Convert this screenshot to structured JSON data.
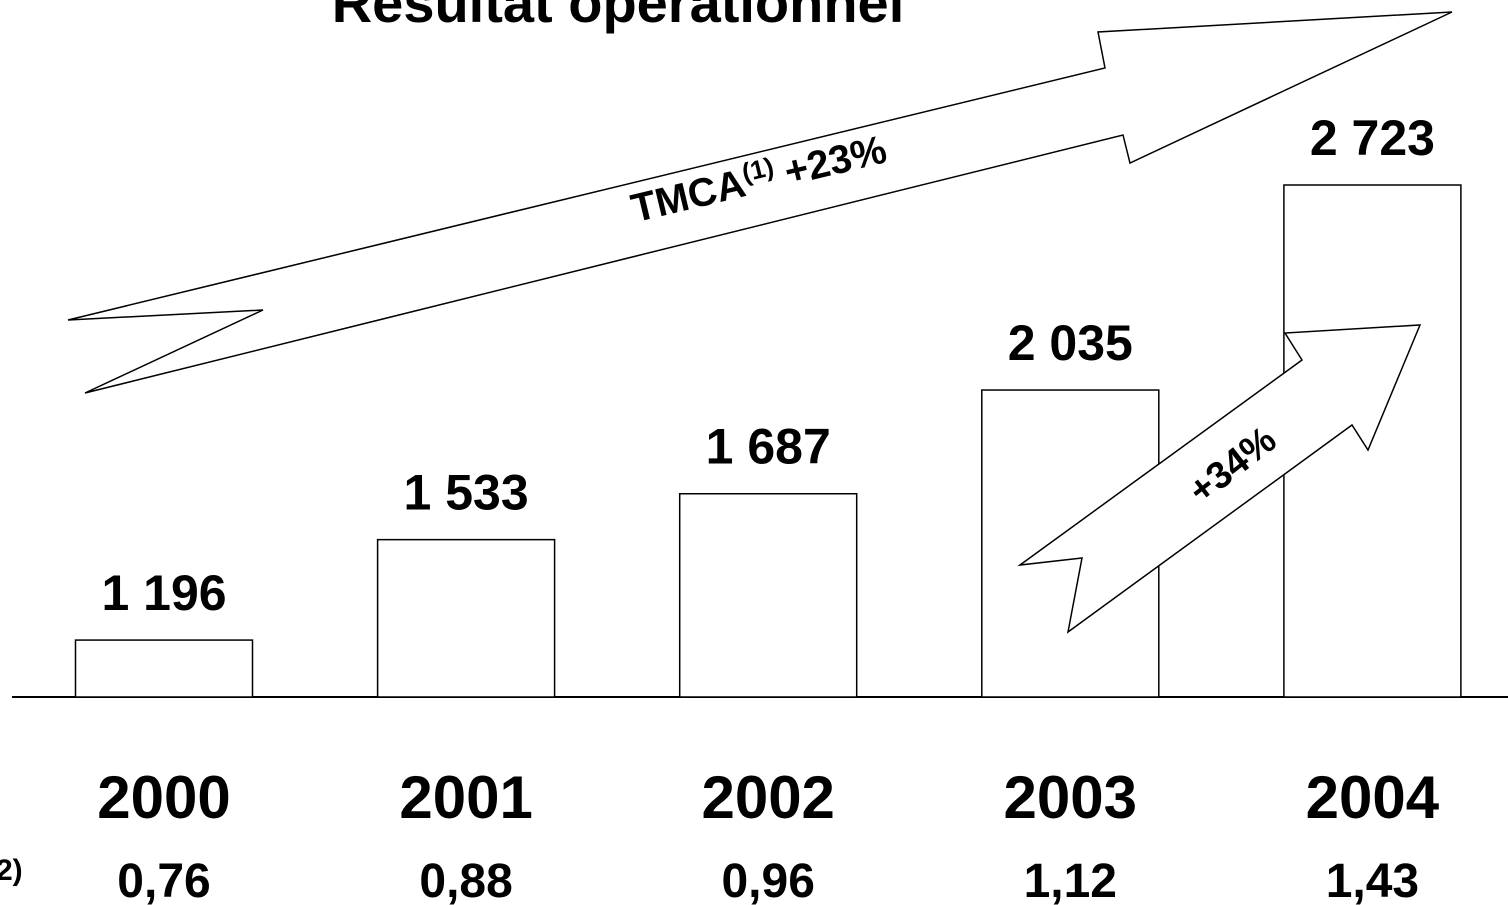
{
  "chart_data": {
    "type": "bar",
    "title": "Résultat opérationnel",
    "categories": [
      "2000",
      "2001",
      "2002",
      "2003",
      "2004"
    ],
    "values": [
      1196,
      1533,
      1687,
      2035,
      2723
    ],
    "value_labels": [
      "1 196",
      "1 533",
      "1 687",
      "2 035",
      "2 723"
    ],
    "color": "#ffffff",
    "ylim": [
      1005,
      2723
    ],
    "row_label": "2)",
    "row_values": [
      0.76,
      0.88,
      0.96,
      1.12,
      1.43
    ],
    "row_value_labels": [
      "0,76",
      "0,88",
      "0,96",
      "1,12",
      "1,43"
    ],
    "annotations": [
      {
        "text": "TMCA",
        "sup": "(1)",
        "after": "+23%"
      },
      {
        "text": "+34%"
      }
    ]
  }
}
